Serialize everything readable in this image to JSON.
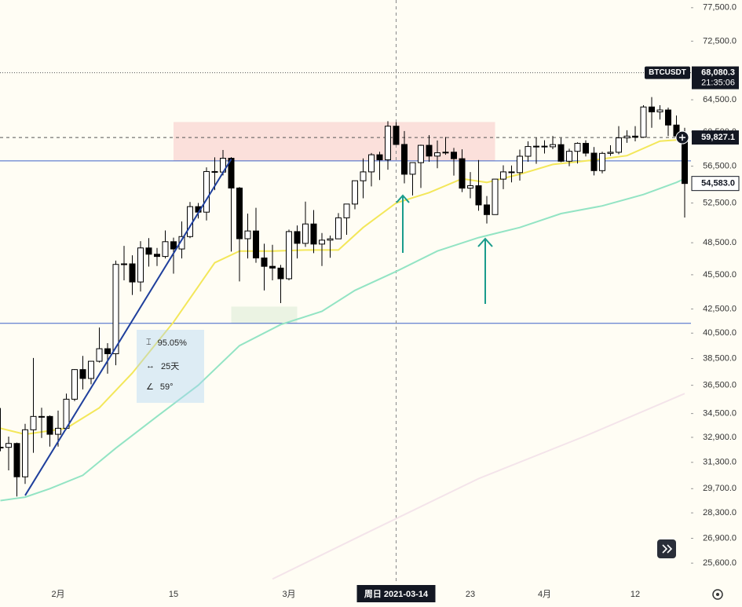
{
  "chart_data": {
    "type": "candlestick",
    "symbol": "BTCUSDT",
    "log_scale": true,
    "up_color": "#ffffff",
    "down_color": "#000000",
    "border_color": "#000000",
    "x": [
      "2021-01-25",
      "2021-01-26",
      "2021-01-27",
      "2021-01-28",
      "2021-01-29",
      "2021-01-30",
      "2021-01-31",
      "2021-02-01",
      "2021-02-02",
      "2021-02-03",
      "2021-02-04",
      "2021-02-05",
      "2021-02-06",
      "2021-02-07",
      "2021-02-08",
      "2021-02-09",
      "2021-02-10",
      "2021-02-11",
      "2021-02-12",
      "2021-02-13",
      "2021-02-14",
      "2021-02-15",
      "2021-02-16",
      "2021-02-17",
      "2021-02-18",
      "2021-02-19",
      "2021-02-20",
      "2021-02-21",
      "2021-02-22",
      "2021-02-23",
      "2021-02-24",
      "2021-02-25",
      "2021-02-26",
      "2021-02-27",
      "2021-02-28",
      "2021-03-01",
      "2021-03-02",
      "2021-03-03",
      "2021-03-04",
      "2021-03-05",
      "2021-03-06",
      "2021-03-07",
      "2021-03-08",
      "2021-03-09",
      "2021-03-10",
      "2021-03-11",
      "2021-03-12",
      "2021-03-13",
      "2021-03-14",
      "2021-03-15",
      "2021-03-16",
      "2021-03-17",
      "2021-03-18",
      "2021-03-19",
      "2021-03-20",
      "2021-03-21",
      "2021-03-22",
      "2021-03-23",
      "2021-03-24",
      "2021-03-25",
      "2021-03-26",
      "2021-03-27",
      "2021-03-28",
      "2021-03-29",
      "2021-03-30",
      "2021-03-31",
      "2021-04-01",
      "2021-04-02",
      "2021-04-03",
      "2021-04-04",
      "2021-04-05",
      "2021-04-06",
      "2021-04-07",
      "2021-04-08",
      "2021-04-09",
      "2021-04-10",
      "2021-04-11",
      "2021-04-12",
      "2021-04-13",
      "2021-04-14",
      "2021-04-15",
      "2021-04-16",
      "2021-04-17",
      "2021-04-18"
    ],
    "open": [
      32260,
      32250,
      32500,
      30410,
      33400,
      34300,
      34300,
      33100,
      33500,
      35500,
      37660,
      37000,
      38290,
      39260,
      38870,
      46450,
      46500,
      44850,
      48000,
      47400,
      47190,
      48600,
      47900,
      49100,
      52120,
      51550,
      55900,
      55840,
      57400,
      54090,
      48890,
      49650,
      47050,
      46270,
      46110,
      45140,
      49590,
      48440,
      50350,
      48370,
      48750,
      48880,
      50970,
      52390,
      54880,
      55860,
      57800,
      57220,
      61190,
      59000,
      55600,
      56900,
      58900,
      57650,
      58030,
      58100,
      57350,
      54080,
      54340,
      52300,
      51300,
      55060,
      55860,
      55780,
      57630,
      58760,
      58800,
      58730,
      58980,
      57060,
      58200,
      59130,
      57990,
      56000,
      57960,
      58090,
      59780,
      59990,
      59860,
      63580,
      62960,
      63200,
      61330,
      60000
    ],
    "high": [
      34880,
      32950,
      32560,
      33800,
      38540,
      34900,
      34370,
      34700,
      35900,
      37700,
      38700,
      38300,
      40950,
      39700,
      46800,
      48200,
      47300,
      48650,
      48950,
      48000,
      49700,
      49000,
      50600,
      52600,
      52500,
      56370,
      57500,
      58350,
      57530,
      54200,
      51400,
      52000,
      48400,
      48300,
      46400,
      49790,
      50200,
      52640,
      51770,
      49450,
      49200,
      51450,
      52400,
      54900,
      57380,
      58000,
      58150,
      61800,
      61680,
      60600,
      56900,
      58980,
      60100,
      59470,
      59880,
      58600,
      58430,
      55840,
      57200,
      53240,
      55080,
      56600,
      56580,
      58400,
      59370,
      59800,
      59500,
      60000,
      59780,
      58500,
      59250,
      59500,
      58700,
      58150,
      58900,
      61200,
      60700,
      61200,
      63800,
      64850,
      63800,
      63500,
      62500,
      61000
    ],
    "low": [
      32000,
      30800,
      29240,
      29980,
      31900,
      32860,
      32300,
      32300,
      33400,
      35360,
      36200,
      36570,
      38200,
      37350,
      37990,
      45000,
      43700,
      44000,
      46250,
      46300,
      47000,
      45600,
      47000,
      48950,
      50900,
      50700,
      53860,
      55470,
      47650,
      44900,
      47000,
      46600,
      44100,
      45000,
      43000,
      45000,
      47000,
      48100,
      47500,
      46300,
      47070,
      48870,
      49270,
      51850,
      53000,
      54270,
      54960,
      56100,
      59000,
      54600,
      53300,
      54100,
      57000,
      56270,
      57800,
      55450,
      53650,
      53000,
      51700,
      50400,
      51280,
      53970,
      54700,
      54900,
      57000,
      56770,
      57940,
      58450,
      56950,
      56500,
      56800,
      57600,
      55470,
      55700,
      57670,
      57870,
      59200,
      59370,
      59790,
      61000,
      62000,
      60000,
      59580,
      51000
    ],
    "close": [
      32250,
      32500,
      30410,
      33400,
      34300,
      34300,
      33100,
      33500,
      35500,
      37660,
      37000,
      38290,
      39260,
      38870,
      46450,
      46500,
      44850,
      48000,
      47400,
      47190,
      48600,
      47900,
      49100,
      52120,
      51550,
      55900,
      55840,
      57400,
      54090,
      48890,
      49650,
      47050,
      46270,
      46110,
      45140,
      49590,
      48440,
      50350,
      48370,
      48750,
      48880,
      50970,
      52390,
      54880,
      55860,
      57800,
      57220,
      61190,
      59000,
      55600,
      56900,
      58900,
      57650,
      58030,
      58100,
      57350,
      54080,
      54340,
      52300,
      51300,
      55060,
      55860,
      55780,
      57630,
      58760,
      58800,
      58730,
      58980,
      57060,
      58200,
      59130,
      57990,
      56000,
      57960,
      58090,
      59780,
      59990,
      59860,
      63580,
      62960,
      63200,
      61330,
      60000,
      54583
    ],
    "lines": [
      {
        "color": "#f3e75a",
        "x": [
          "2021-01-25",
          "2021-01-28",
          "2021-02-02",
          "2021-02-06",
          "2021-02-10",
          "2021-02-15",
          "2021-02-20",
          "2021-02-23",
          "2021-02-27",
          "2021-03-03",
          "2021-03-07",
          "2021-03-10",
          "2021-03-14",
          "2021-03-18",
          "2021-03-22",
          "2021-03-25",
          "2021-03-29",
          "2021-04-02",
          "2021-04-07",
          "2021-04-11",
          "2021-04-15",
          "2021-04-18"
        ],
        "values": [
          33500,
          33100,
          33500,
          34900,
          37400,
          41400,
          46600,
          47700,
          47700,
          47800,
          47800,
          50000,
          52500,
          53600,
          55100,
          54700,
          55600,
          56700,
          57200,
          57700,
          59400,
          59600
        ]
      },
      {
        "color": "#93e4c4",
        "x": [
          "2021-01-25",
          "2021-01-28",
          "2021-01-31",
          "2021-02-04",
          "2021-02-08",
          "2021-02-13",
          "2021-02-18",
          "2021-02-23",
          "2021-02-28",
          "2021-03-05",
          "2021-03-09",
          "2021-03-14",
          "2021-03-19",
          "2021-03-24",
          "2021-03-29",
          "2021-04-03",
          "2021-04-08",
          "2021-04-13",
          "2021-04-17",
          "2021-04-18"
        ],
        "values": [
          29000,
          29200,
          29700,
          30500,
          32200,
          34300,
          36500,
          39500,
          41200,
          42300,
          44100,
          45800,
          47700,
          49000,
          50000,
          51400,
          52200,
          53400,
          54700,
          55100
        ]
      },
      {
        "color": "#f4e4ea",
        "x": [
          "2021-02-27",
          "2021-03-10",
          "2021-03-24",
          "2021-04-06",
          "2021-04-18"
        ],
        "values": [
          24800,
          27100,
          30300,
          33000,
          35900
        ]
      }
    ],
    "horizontal_lines": {
      "color": "#3d63c8",
      "values": [
        57100,
        41300
      ]
    },
    "trend_line": {
      "color": "#1f3f9c",
      "x": [
        "2021-01-28",
        "2021-02-22"
      ],
      "values": [
        29300,
        57300
      ]
    },
    "zones": [
      {
        "color": "#f9d3d0",
        "x": [
          "2021-02-15",
          "2021-03-26"
        ],
        "values": [
          57100,
          61700
        ]
      },
      {
        "color": "#e3eedc",
        "x": [
          "2021-02-22",
          "2021-03-02"
        ],
        "values": [
          41300,
          42700
        ]
      }
    ],
    "measure": {
      "change": "95.05%",
      "bars": "25天",
      "angle": "59°"
    },
    "crosshair": {
      "x": "2021-03-14",
      "label": "周日 2021-03-14"
    },
    "price_labels": [
      {
        "value": 68080.3,
        "label": "68,080.3",
        "time": "21:35:06",
        "line": "dotted"
      },
      {
        "value": 59827.1,
        "label": "59,827.1",
        "line": "dashed"
      },
      {
        "value": 54583,
        "label": "54,583.0"
      }
    ],
    "ylim": [
      24700,
      78700
    ],
    "yticks": [
      {
        "value": 77500,
        "label": "77,500.0"
      },
      {
        "value": 72500,
        "label": "72,500.0"
      },
      {
        "value": 64500,
        "label": "64,500.0"
      },
      {
        "value": 60500,
        "label": "60,500.0"
      },
      {
        "value": 56500,
        "label": "56,500.0"
      },
      {
        "value": 52500,
        "label": "52,500.0"
      },
      {
        "value": 48500,
        "label": "48,500.0"
      },
      {
        "value": 45500,
        "label": "45,500.0"
      },
      {
        "value": 42500,
        "label": "42,500.0"
      },
      {
        "value": 40500,
        "label": "40,500.0"
      },
      {
        "value": 38500,
        "label": "38,500.0"
      },
      {
        "value": 36500,
        "label": "36,500.0"
      },
      {
        "value": 34500,
        "label": "34,500.0"
      },
      {
        "value": 32900,
        "label": "32,900.0"
      },
      {
        "value": 31300,
        "label": "31,300.0"
      },
      {
        "value": 29700,
        "label": "29,700.0"
      },
      {
        "value": 28300,
        "label": "28,300.0"
      },
      {
        "value": 26900,
        "label": "26,900.0"
      },
      {
        "value": 25600,
        "label": "25,600.0"
      }
    ],
    "xticks": [
      {
        "value": "2021-02-01",
        "label": "2月"
      },
      {
        "value": "2021-02-15",
        "label": "15"
      },
      {
        "value": "2021-03-01",
        "label": "3月"
      },
      {
        "value": "2021-03-23",
        "label": "23"
      },
      {
        "value": "2021-04-01",
        "label": "4月"
      },
      {
        "value": "2021-04-12",
        "label": "12"
      }
    ]
  }
}
